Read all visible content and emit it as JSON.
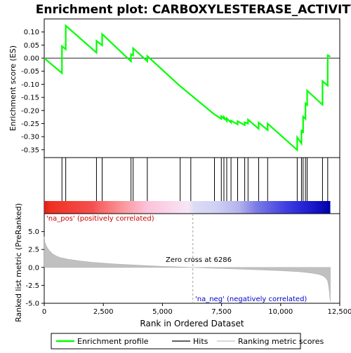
{
  "title": "Enrichment plot: CARBOXYLESTERASE_ACTIVITY",
  "colors": {
    "es_line": "#00ff00",
    "hits": "#000000",
    "metric_fill": "#c0c0c0",
    "pos_label": "#cc0000",
    "neg_label": "#0000cc",
    "zero_line": "#a0a0a0"
  },
  "chart_data": [
    {
      "type": "line",
      "panel": "enrichment",
      "ylabel": "Enrichment score (ES)",
      "xlim": [
        0,
        12500
      ],
      "ylim": [
        -0.38,
        0.15
      ],
      "yticks": [
        -0.35,
        -0.3,
        -0.25,
        -0.2,
        -0.15,
        -0.1,
        -0.05,
        0.0,
        0.05,
        0.1
      ],
      "ytick_labels": [
        "-0.35",
        "-0.30",
        "-0.25",
        "-0.20",
        "-0.15",
        "-0.10",
        "-0.05",
        "0.00",
        "0.05",
        "0.10"
      ],
      "series": [
        {
          "name": "Enrichment profile",
          "x": [
            0,
            750,
            750,
            910,
            910,
            2210,
            2210,
            2450,
            2450,
            3670,
            3670,
            3760,
            3760,
            4360,
            4360,
            5750,
            7200,
            7490,
            7490,
            7600,
            7600,
            7720,
            7720,
            7900,
            7900,
            8180,
            8180,
            8480,
            8480,
            8620,
            8620,
            9070,
            9070,
            9450,
            9450,
            10700,
            10700,
            10880,
            10880,
            10950,
            10950,
            11050,
            11050,
            11120,
            11120,
            11770,
            11770,
            11990,
            11990,
            12100
          ],
          "y": [
            0.0,
            -0.057,
            0.046,
            0.034,
            0.124,
            0.021,
            0.066,
            0.049,
            0.092,
            -0.012,
            0.015,
            0.011,
            0.038,
            -0.012,
            0.008,
            -0.107,
            -0.215,
            -0.232,
            -0.222,
            -0.231,
            -0.225,
            -0.24,
            -0.23,
            -0.246,
            -0.239,
            -0.253,
            -0.241,
            -0.256,
            -0.245,
            -0.25,
            -0.235,
            -0.27,
            -0.246,
            -0.275,
            -0.25,
            -0.351,
            -0.303,
            -0.326,
            -0.274,
            -0.286,
            -0.223,
            -0.232,
            -0.173,
            -0.179,
            -0.124,
            -0.178,
            -0.088,
            -0.105,
            0.011,
            0.006
          ]
        }
      ]
    },
    {
      "type": "scatter",
      "panel": "hits",
      "series": [
        {
          "name": "Hits",
          "x": [
            750,
            910,
            2210,
            2450,
            3670,
            3760,
            4360,
            5750,
            6200,
            7200,
            7490,
            7600,
            7720,
            7900,
            8180,
            8480,
            8620,
            9070,
            9450,
            10700,
            10880,
            10950,
            11050,
            11120,
            11770,
            11990
          ]
        }
      ]
    },
    {
      "type": "area",
      "panel": "ranked_metric",
      "xlabel": "Rank in Ordered Dataset",
      "ylabel": "Ranked list metric (PreRanked)",
      "xlim": [
        0,
        12500
      ],
      "ylim": [
        -5.0,
        7.5
      ],
      "yticks": [
        -5.0,
        -2.5,
        0.0,
        2.5,
        5.0
      ],
      "ytick_labels": [
        "-5.0",
        "-2.5",
        "0.0",
        "2.5",
        "5.0"
      ],
      "xticks": [
        0,
        2500,
        5000,
        7500,
        10000,
        12500
      ],
      "xtick_labels": [
        "0",
        "2,500",
        "5,000",
        "7,500",
        "10,000",
        "12,500"
      ],
      "series": [
        {
          "name": "Ranking metric scores",
          "x": [
            0,
            30,
            100,
            200,
            350,
            500,
            700,
            1000,
            1500,
            2000,
            3000,
            4000,
            5000,
            6286,
            7000,
            8000,
            9000,
            10000,
            10800,
            11300,
            11600,
            11800,
            11900,
            11980,
            12020,
            12060,
            12100
          ],
          "y": [
            4.3,
            3.5,
            2.9,
            2.4,
            1.9,
            1.6,
            1.35,
            1.15,
            0.9,
            0.72,
            0.48,
            0.3,
            0.15,
            0.0,
            -0.1,
            -0.2,
            -0.32,
            -0.45,
            -0.6,
            -0.78,
            -0.95,
            -1.2,
            -1.45,
            -1.8,
            -2.4,
            -3.4,
            -4.8
          ]
        }
      ],
      "zero_cross_label": "Zero cross at 6286",
      "zero_cross_x": 6286,
      "pos_label": "'na_pos' (positively correlated)",
      "neg_label": "'na_neg' (negatively correlated)"
    }
  ],
  "legend": [
    {
      "label": "Enrichment profile",
      "kind": "line",
      "color": "#00ff00"
    },
    {
      "label": "Hits",
      "kind": "line",
      "color": "#000000"
    },
    {
      "label": "Ranking metric scores",
      "kind": "line",
      "color": "#c0c0c0"
    }
  ]
}
